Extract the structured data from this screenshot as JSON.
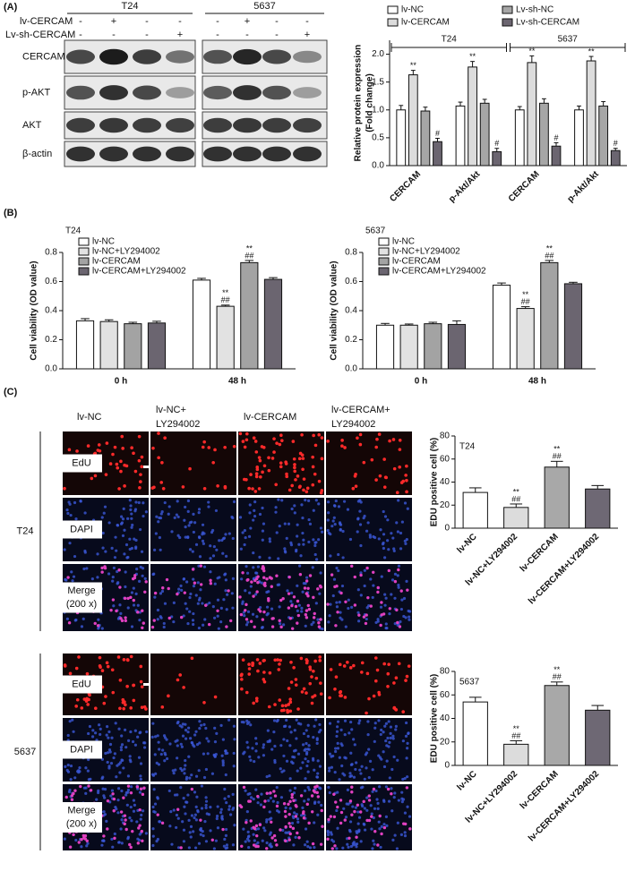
{
  "panel_labels": [
    "(A)",
    "(B)",
    "(C)"
  ],
  "blot": {
    "cell_lines": [
      "T24",
      "5637"
    ],
    "treatments": [
      {
        "label": "lv-CERCAM",
        "signs": [
          "-",
          "+",
          "-",
          "-",
          "-",
          "+",
          "-",
          "-"
        ]
      },
      {
        "label": "Lv-sh-CERCAM",
        "signs": [
          "-",
          "-",
          "-",
          "+",
          "-",
          "-",
          "-",
          "+"
        ]
      }
    ],
    "proteins": [
      "CERCAM",
      "p-AKT",
      "AKT",
      "β-actin"
    ]
  },
  "imaging": {
    "columns": [
      [
        "lv-NC"
      ],
      [
        "lv-NC+",
        "LY294002"
      ],
      [
        "lv-CERCAM"
      ],
      [
        "lv-CERCAM+",
        "LY294002"
      ]
    ],
    "rows": [
      [
        "EdU"
      ],
      [
        "DAPI"
      ],
      [
        "Merge",
        "(200 x)"
      ]
    ],
    "cell_lines": [
      "T24",
      "5637"
    ]
  },
  "chart_data": [
    {
      "type": "bar",
      "ylabel": [
        "Relative protein expression",
        "(Fold change)"
      ],
      "group_labels": [
        "T24",
        "5637"
      ],
      "categories": [
        "CERCAM",
        "p-Akt/Akt",
        "CERCAM",
        "p-Akt/Akt"
      ],
      "series": [
        {
          "name": "lv-NC",
          "color": "#ffffff",
          "values": [
            1.0,
            1.07,
            1.0,
            1.0
          ],
          "errors": [
            0.08,
            0.07,
            0.06,
            0.07
          ]
        },
        {
          "name": "lv-CERCAM",
          "color": "#dcdcdc",
          "values": [
            1.63,
            1.77,
            1.85,
            1.88
          ],
          "errors": [
            0.08,
            0.1,
            0.12,
            0.08
          ],
          "annotations": [
            [
              "**"
            ],
            [
              "**"
            ],
            [
              "**"
            ],
            [
              "**"
            ]
          ]
        },
        {
          "name": "Lv-sh-NC",
          "color": "#a6a6a6",
          "values": [
            0.98,
            1.12,
            1.12,
            1.07
          ],
          "errors": [
            0.07,
            0.07,
            0.08,
            0.08
          ]
        },
        {
          "name": "Lv-sh-CERCAM",
          "color": "#6b6570",
          "values": [
            0.43,
            0.25,
            0.35,
            0.27
          ],
          "errors": [
            0.06,
            0.06,
            0.06,
            0.04
          ],
          "annotations": [
            [
              "#"
            ],
            [
              "#"
            ],
            [
              "#"
            ],
            [
              "#"
            ]
          ]
        }
      ],
      "ylim": [
        0,
        2.25
      ],
      "yticks": [
        {
          "value": 0,
          "label": "0.0"
        },
        0.5,
        {
          "value": 1,
          "label": "1.0"
        },
        1.5,
        {
          "value": 2,
          "label": "2.0"
        }
      ]
    },
    {
      "type": "bar",
      "title": "T24",
      "ylabel": [
        "Cell viability (OD value)"
      ],
      "categories": [
        "0 h",
        "48 h"
      ],
      "series": [
        {
          "name": "lv-NC",
          "color": "#ffffff",
          "values": [
            0.33,
            0.61
          ],
          "errors": [
            0.015,
            0.012
          ]
        },
        {
          "name": "lv-NC+LY294002",
          "color": "#e2e2e2",
          "values": [
            0.325,
            0.43
          ],
          "errors": [
            0.012,
            0.008
          ],
          "annotations": [
            null,
            [
              "**",
              "##"
            ]
          ]
        },
        {
          "name": "lv-CERCAM",
          "color": "#a3a3a3",
          "values": [
            0.31,
            0.73
          ],
          "errors": [
            0.01,
            0.015
          ],
          "annotations": [
            null,
            [
              "**",
              "##"
            ]
          ]
        },
        {
          "name": "lv-CERCAM+LY294002",
          "color": "#6b6570",
          "values": [
            0.315,
            0.615
          ],
          "errors": [
            0.012,
            0.012
          ]
        }
      ],
      "ylim": [
        0,
        0.8
      ],
      "yticks": [
        {
          "value": 0,
          "label": "0.0"
        },
        0.2,
        0.4,
        0.6,
        0.8
      ]
    },
    {
      "type": "bar",
      "title": "5637",
      "ylabel": [
        "Cell viability (OD value)"
      ],
      "categories": [
        "0 h",
        "48 h"
      ],
      "series": [
        {
          "name": "lv-NC",
          "color": "#ffffff",
          "values": [
            0.3,
            0.575
          ],
          "errors": [
            0.012,
            0.015
          ]
        },
        {
          "name": "lv-NC+LY294002",
          "color": "#e2e2e2",
          "values": [
            0.3,
            0.415
          ],
          "errors": [
            0.008,
            0.012
          ],
          "annotations": [
            null,
            [
              "**",
              "##"
            ]
          ]
        },
        {
          "name": "lv-CERCAM",
          "color": "#a3a3a3",
          "values": [
            0.31,
            0.73
          ],
          "errors": [
            0.01,
            0.015
          ],
          "annotations": [
            null,
            [
              "**",
              "##"
            ]
          ]
        },
        {
          "name": "lv-CERCAM+LY294002",
          "color": "#6b6570",
          "values": [
            0.305,
            0.585
          ],
          "errors": [
            0.025,
            0.01
          ]
        }
      ],
      "ylim": [
        0,
        0.8
      ],
      "yticks": [
        {
          "value": 0,
          "label": "0.0"
        },
        0.2,
        0.4,
        0.6,
        0.8
      ]
    },
    {
      "type": "bar",
      "title": "T24",
      "ylabel": [
        "EDU positive cell (%)"
      ],
      "categories": [
        "lv-NC",
        "lv-NC+LY294002",
        "lv-CERCAM",
        "lv-CERCAM+LY294002"
      ],
      "values": [
        31,
        18,
        53,
        34
      ],
      "errors": [
        4,
        3,
        5,
        3
      ],
      "colors": [
        "#ffffff",
        "#dcdcdc",
        "#a8a8a8",
        "#6e6874"
      ],
      "annotations": [
        null,
        [
          "**",
          "##"
        ],
        [
          "**",
          "##"
        ],
        null
      ],
      "ylim": [
        0,
        80
      ],
      "yticks": [
        0,
        20,
        40,
        60,
        80
      ]
    },
    {
      "type": "bar",
      "title": "5637",
      "ylabel": [
        "EDU positive cell (%)"
      ],
      "categories": [
        "lv-NC",
        "lv-NC+LY294002",
        "lv-CERCAM",
        "lv-CERCAM+LY294002"
      ],
      "values": [
        54,
        18,
        68,
        47
      ],
      "errors": [
        4,
        3,
        3,
        4
      ],
      "colors": [
        "#ffffff",
        "#dcdcdc",
        "#a8a8a8",
        "#6e6874"
      ],
      "annotations": [
        null,
        [
          "**",
          "##"
        ],
        [
          "**",
          "##"
        ],
        null
      ],
      "ylim": [
        0,
        80
      ],
      "yticks": [
        0,
        20,
        40,
        60,
        80
      ]
    }
  ]
}
